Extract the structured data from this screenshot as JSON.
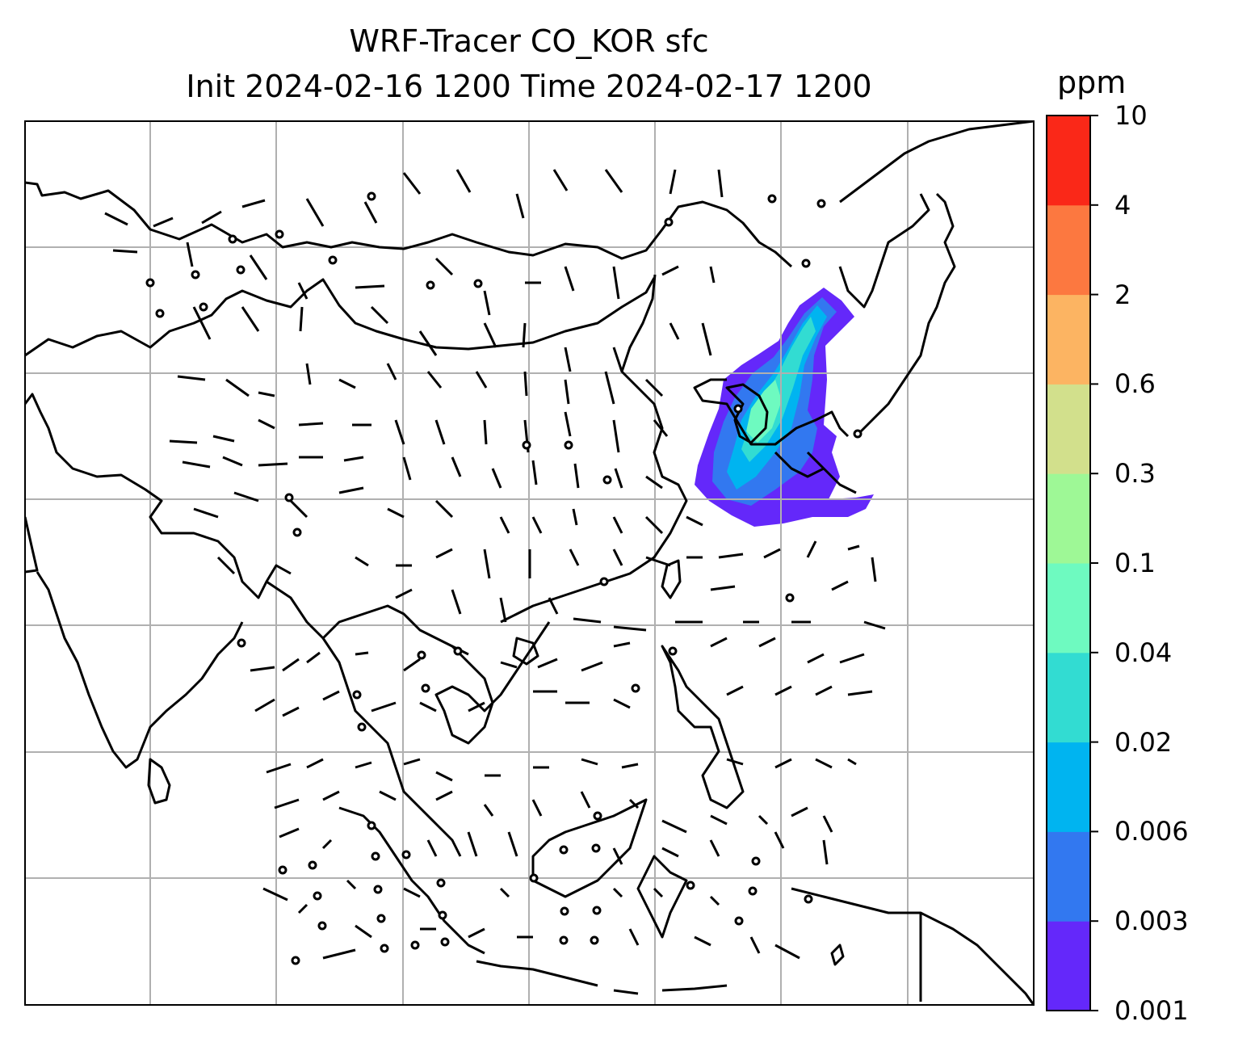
{
  "title": {
    "line1": "WRF-Tracer CO_KOR sfc",
    "line2": "Init 2024-02-16 1200 Time 2024-02-17 1200"
  },
  "colorbar": {
    "unit": "ppm",
    "levels": [
      "0.001",
      "0.003",
      "0.006",
      "0.02",
      "0.04",
      "0.1",
      "0.3",
      "0.6",
      "2",
      "4",
      "10"
    ],
    "colors": [
      "#6428fa",
      "#3278f0",
      "#00b4f0",
      "#32dcd2",
      "#6efac0",
      "#9ef896",
      "#d2e08c",
      "#fcb462",
      "#fc7840",
      "#fa2818"
    ]
  },
  "map": {
    "gridlines": true,
    "grid_color": "#b0b0b0",
    "coastline_color": "#000000",
    "plume_colors": {
      "outer": "#6428fa",
      "mid": "#3278f0",
      "inner": "#00b4f0",
      "core": "#32dcd2",
      "peak": "#6efac0"
    }
  }
}
